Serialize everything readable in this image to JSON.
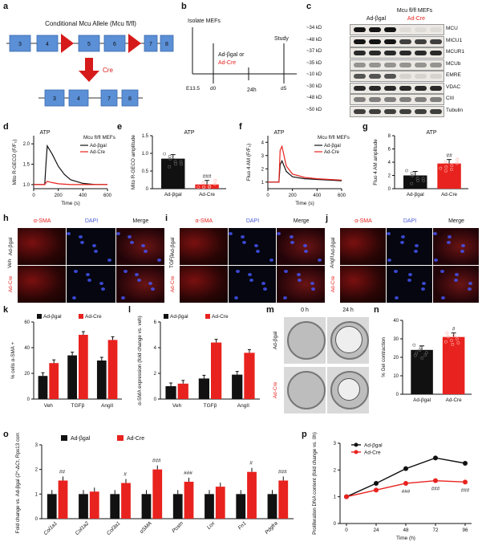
{
  "figure": {
    "panel_labels": [
      "a",
      "b",
      "c",
      "d",
      "e",
      "f",
      "g",
      "h",
      "i",
      "j",
      "k",
      "l",
      "m",
      "n",
      "o",
      "p"
    ],
    "a": {
      "allele_title": "Conditional Mcu Allele (Mcu fl/fl)",
      "exons_top": [
        "3",
        "4",
        "5",
        "6",
        "7",
        "8"
      ],
      "cre_label": "Cre",
      "exons_bottom": [
        "3",
        "4",
        "7",
        "8"
      ]
    },
    "b": {
      "isolate": "Isolate MEFs",
      "treatment_1": "Ad-βgal or",
      "treatment_2": "Ad-Cre",
      "duration": "24h",
      "study": "Study",
      "timepoints": [
        "E13.5",
        "d0",
        "d5"
      ]
    },
    "c": {
      "title": "Mcu fl/fl MEFs",
      "groups": [
        "Ad-βgal",
        "Ad-Cre"
      ],
      "markers": [
        "~34 kD",
        "~48 kD",
        "~37 kD",
        "~35 kD",
        "~10 kD",
        "~30 kD",
        "~48 kD",
        "~50 kD"
      ],
      "proteins": [
        "MCU",
        "MICU1",
        "MCUR1",
        "MCUb",
        "EMRE",
        "VDAC",
        "CIII",
        "Tubulin"
      ]
    },
    "d": {
      "stim": "ATP",
      "legend_title": "Mcu fl/fl MEFs",
      "series": [
        "Ad-βgal",
        "Ad-Cre"
      ],
      "ylabel": "Mito R-GECO (F/F₀)",
      "xlabel": "Time (s)",
      "yticks": [
        "1.0",
        "1.5",
        "2.0"
      ],
      "xticks": [
        "0",
        "200",
        "400",
        "600"
      ]
    },
    "e": {
      "stim": "ATP",
      "ylabel": "Mito R-GECO amplitude",
      "yticks": [
        "0",
        "0.5",
        "1.0",
        "1.5"
      ],
      "groups": [
        "Ad-βgal",
        "Ad-Cre"
      ],
      "sig": "###"
    },
    "f": {
      "stim": "ATP",
      "legend_title": "Mcu fl/fl MEFs",
      "series": [
        "Ad-βgal",
        "Ad-Cre"
      ],
      "ylabel": "Fluo 4 AM (F/F₀)",
      "xlabel": "Time (s)",
      "yticks": [
        "1",
        "2",
        "3",
        "4"
      ],
      "xticks": [
        "0",
        "200",
        "400",
        "600"
      ]
    },
    "g": {
      "stim": "ATP",
      "ylabel": "Fluo 4 AM amplitude",
      "yticks": [
        "0",
        "2",
        "4",
        "6",
        "8"
      ],
      "groups": [
        "Ad-βgal",
        "Ad-Cre"
      ],
      "sig": "##"
    },
    "h": {
      "cols": [
        "α-SMA",
        "DAPI",
        "Merge"
      ],
      "rows": [
        "Ad-βgal",
        "Ad-Cre"
      ],
      "condition": "Veh"
    },
    "i": {
      "cols": [
        "α-SMA",
        "DAPI",
        "Merge"
      ],
      "rows": [
        "Ad-βgal",
        "Ad-Cre"
      ],
      "condition": "TGFβ"
    },
    "j": {
      "cols": [
        "α-SMA",
        "DAPI",
        "Merge"
      ],
      "rows": [
        "Ad-βgal",
        "Ad-Cre"
      ],
      "condition": "AngII"
    },
    "k": {
      "legend": [
        "Ad-βgal",
        "Ad-Cre"
      ],
      "ylabel": "% cells α-SMA +",
      "yticks": [
        "0",
        "20",
        "40",
        "60"
      ],
      "categories": [
        "Veh",
        "TGFβ",
        "AngII"
      ]
    },
    "l": {
      "legend": [
        "Ad-βgal",
        "Ad-Cre"
      ],
      "ylabel": "α-SMA expression (fold change vs. veh)",
      "yticks": [
        "0",
        "2",
        "4",
        "6"
      ],
      "categories": [
        "Veh",
        "TGFβ",
        "AngII"
      ]
    },
    "m": {
      "cols": [
        "0 h",
        "24 h"
      ],
      "rows": [
        "Ad-βgal",
        "Ad-Cre"
      ]
    },
    "n": {
      "ylabel": "% Gel contraction",
      "yticks": [
        "0",
        "10",
        "20",
        "30",
        "40"
      ],
      "groups": [
        "Ad-βgal",
        "Ad-Cre"
      ],
      "sig": "#"
    },
    "o": {
      "legend": [
        "Ad-βgal",
        "Ad-Cre"
      ],
      "ylabel": "Fold change vs. Ad-βgal (2^-ΔCt, Rps13 corr.)",
      "yticks": [
        "0",
        "1",
        "2",
        "3"
      ],
      "genes": [
        "Col1a1",
        "Col1a2",
        "Col3a1",
        "αSMA",
        "Postn",
        "Lox",
        "Fn1",
        "Pdgfra"
      ],
      "sig": [
        "##",
        "",
        "#",
        "###",
        "###",
        "",
        "#",
        "###"
      ]
    },
    "p": {
      "legend": [
        "Ad-βgal",
        "Ad-Cre"
      ],
      "ylabel": "Proliferation DNA content (fold change vs. 0h)",
      "xlabel": "Time (h)",
      "yticks": [
        "0",
        "1",
        "2",
        "3"
      ],
      "xticks": [
        "0",
        "24",
        "48",
        "72",
        "96"
      ],
      "sig": [
        "",
        "",
        "###",
        "###",
        "###"
      ]
    },
    "colors": {
      "black": "#111111",
      "red": "#e8221e",
      "blue": "#5b8fd6"
    }
  },
  "chart_data": [
    {
      "type": "line",
      "panel": "d",
      "x_unit": "s",
      "xlim": [
        0,
        600
      ],
      "ylim": [
        0.9,
        2.2
      ],
      "series": [
        {
          "name": "Ad-βgal",
          "x": [
            0,
            90,
            100,
            110,
            150,
            200,
            250,
            300,
            400,
            500,
            600
          ],
          "y": [
            1.0,
            1.0,
            1.5,
            1.95,
            1.75,
            1.45,
            1.25,
            1.12,
            1.03,
            1.0,
            1.0
          ]
        },
        {
          "name": "Ad-Cre",
          "x": [
            0,
            90,
            100,
            110,
            150,
            200,
            300,
            600
          ],
          "y": [
            1.0,
            1.0,
            1.05,
            1.08,
            1.05,
            1.02,
            1.0,
            1.0
          ]
        }
      ]
    },
    {
      "type": "bar",
      "panel": "e",
      "categories": [
        "Ad-βgal",
        "Ad-Cre"
      ],
      "values": [
        0.85,
        0.12
      ],
      "ylim": [
        0,
        1.5
      ]
    },
    {
      "type": "line",
      "panel": "f",
      "x_unit": "s",
      "xlim": [
        0,
        600
      ],
      "ylim": [
        0.5,
        4.5
      ],
      "series": [
        {
          "name": "Ad-βgal",
          "x": [
            0,
            90,
            100,
            115,
            150,
            200,
            300,
            400,
            500,
            600
          ],
          "y": [
            1.0,
            1.0,
            2.3,
            2.6,
            1.8,
            1.4,
            1.25,
            1.2,
            1.15,
            1.1
          ]
        },
        {
          "name": "Ad-Cre",
          "x": [
            0,
            90,
            100,
            115,
            150,
            200,
            300,
            400,
            500,
            600
          ],
          "y": [
            1.0,
            1.0,
            3.4,
            3.7,
            2.2,
            1.6,
            1.35,
            1.25,
            1.2,
            1.15
          ]
        }
      ]
    },
    {
      "type": "bar",
      "panel": "g",
      "categories": [
        "Ad-βgal",
        "Ad-Cre"
      ],
      "values": [
        2.0,
        3.8
      ],
      "ylim": [
        0,
        8
      ]
    },
    {
      "type": "bar",
      "panel": "k",
      "categories": [
        "Veh",
        "TGFβ",
        "AngII"
      ],
      "series": [
        {
          "name": "Ad-βgal",
          "values": [
            18,
            34,
            30
          ]
        },
        {
          "name": "Ad-Cre",
          "values": [
            28,
            50,
            46
          ]
        }
      ],
      "ylim": [
        0,
        60
      ]
    },
    {
      "type": "bar",
      "panel": "l",
      "categories": [
        "Veh",
        "TGFβ",
        "AngII"
      ],
      "series": [
        {
          "name": "Ad-βgal",
          "values": [
            1.0,
            1.6,
            1.9
          ]
        },
        {
          "name": "Ad-Cre",
          "values": [
            1.2,
            4.4,
            3.6
          ]
        }
      ],
      "ylim": [
        0,
        6
      ]
    },
    {
      "type": "bar",
      "panel": "n",
      "categories": [
        "Ad-βgal",
        "Ad-Cre"
      ],
      "values": [
        24,
        31
      ],
      "ylim": [
        0,
        40
      ]
    },
    {
      "type": "bar",
      "panel": "o",
      "categories": [
        "Col1a1",
        "Col1a2",
        "Col3a1",
        "αSMA",
        "Postn",
        "Lox",
        "Fn1",
        "Pdgfra"
      ],
      "series": [
        {
          "name": "Ad-βgal",
          "values": [
            1,
            1,
            1,
            1,
            1,
            1,
            1,
            1
          ]
        },
        {
          "name": "Ad-Cre",
          "values": [
            1.55,
            1.1,
            1.45,
            2.0,
            1.5,
            1.3,
            1.9,
            1.55
          ]
        }
      ],
      "ylim": [
        0,
        3
      ]
    },
    {
      "type": "line",
      "panel": "p",
      "x_unit": "h",
      "xlim": [
        0,
        96
      ],
      "ylim": [
        0,
        3
      ],
      "series": [
        {
          "name": "Ad-βgal",
          "x": [
            0,
            24,
            48,
            72,
            96
          ],
          "y": [
            1.0,
            1.5,
            2.05,
            2.45,
            2.25
          ]
        },
        {
          "name": "Ad-Cre",
          "x": [
            0,
            24,
            48,
            72,
            96
          ],
          "y": [
            1.0,
            1.25,
            1.5,
            1.6,
            1.55
          ]
        }
      ]
    }
  ]
}
